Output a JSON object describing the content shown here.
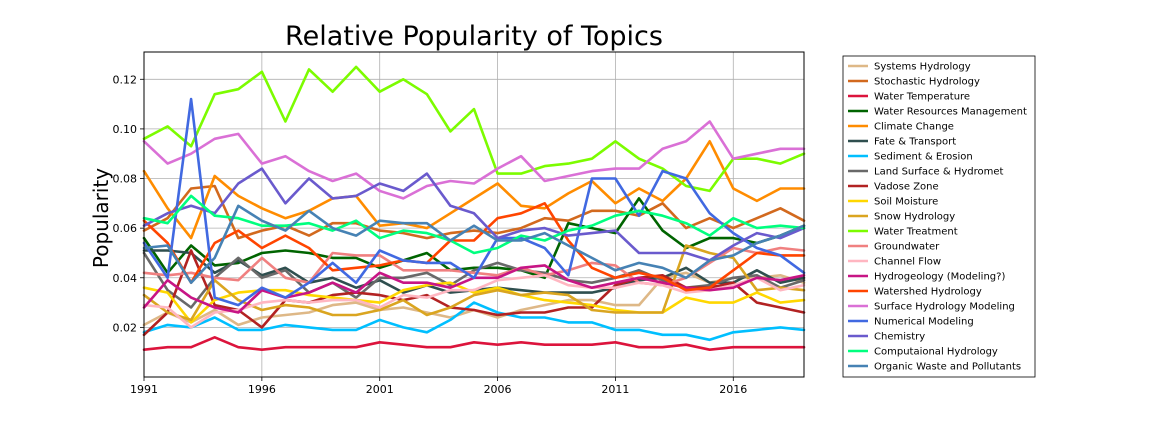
{
  "chart_data": {
    "type": "line",
    "title": "Relative Popularity of Topics",
    "xlabel": "",
    "ylabel": "Popularity",
    "xlim": [
      1991,
      2019
    ],
    "ylim": [
      0,
      0.131
    ],
    "grid": true,
    "legend_placement": "outside-right",
    "x": [
      1991,
      1992,
      1993,
      1994,
      1995,
      1996,
      1997,
      1998,
      1999,
      2000,
      2001,
      2002,
      2003,
      2004,
      2005,
      2006,
      2007,
      2008,
      2009,
      2010,
      2011,
      2012,
      2013,
      2014,
      2015,
      2016,
      2017,
      2018,
      2019
    ],
    "x_ticks": [
      1991,
      1996,
      2001,
      2006,
      2011,
      2016
    ],
    "y_ticks": [
      0.02,
      0.04,
      0.06,
      0.08,
      0.1,
      0.12
    ],
    "y_tick_labels": [
      "0.02",
      "0.04",
      "0.06",
      "0.08",
      "0.10",
      "0.12"
    ],
    "series": [
      {
        "name": "Systems Hydrology",
        "color": "#deb887",
        "values": [
          0.021,
          0.026,
          0.022,
          0.027,
          0.021,
          0.024,
          0.025,
          0.026,
          0.029,
          0.03,
          0.027,
          0.028,
          0.026,
          0.024,
          0.027,
          0.024,
          0.027,
          0.029,
          0.031,
          0.031,
          0.029,
          0.029,
          0.04,
          0.042,
          0.038,
          0.04,
          0.04,
          0.041,
          0.038
        ]
      },
      {
        "name": "Stochastic Hydrology",
        "color": "#d2691e",
        "values": [
          0.059,
          0.064,
          0.076,
          0.077,
          0.056,
          0.059,
          0.061,
          0.057,
          0.062,
          0.062,
          0.059,
          0.058,
          0.056,
          0.058,
          0.059,
          0.058,
          0.06,
          0.064,
          0.063,
          0.067,
          0.067,
          0.065,
          0.07,
          0.06,
          0.064,
          0.06,
          0.064,
          0.068,
          0.063
        ]
      },
      {
        "name": "Water Temperature",
        "color": "#dc143c",
        "values": [
          0.011,
          0.012,
          0.012,
          0.016,
          0.012,
          0.011,
          0.012,
          0.012,
          0.012,
          0.012,
          0.014,
          0.013,
          0.012,
          0.012,
          0.014,
          0.013,
          0.014,
          0.013,
          0.013,
          0.013,
          0.014,
          0.012,
          0.012,
          0.013,
          0.011,
          0.012,
          0.012,
          0.012,
          0.012
        ]
      },
      {
        "name": "Water Resources Management",
        "color": "#006400",
        "values": [
          0.056,
          0.042,
          0.053,
          0.045,
          0.046,
          0.05,
          0.051,
          0.05,
          0.048,
          0.048,
          0.044,
          0.047,
          0.05,
          0.043,
          0.044,
          0.044,
          0.043,
          0.04,
          0.062,
          0.06,
          0.058,
          0.072,
          0.059,
          0.052,
          0.056,
          0.056,
          0.054,
          0.057,
          0.061
        ]
      },
      {
        "name": "Climate Change",
        "color": "#ff8c00",
        "values": [
          0.083,
          0.068,
          0.056,
          0.081,
          0.073,
          0.068,
          0.064,
          0.067,
          0.072,
          0.073,
          0.061,
          0.062,
          0.06,
          0.066,
          0.072,
          0.078,
          0.069,
          0.068,
          0.074,
          0.079,
          0.07,
          0.076,
          0.071,
          0.08,
          0.095,
          0.076,
          0.071,
          0.076,
          0.076
        ]
      },
      {
        "name": "Fate & Transport",
        "color": "#2f4f4f",
        "values": [
          0.051,
          0.051,
          0.05,
          0.042,
          0.047,
          0.041,
          0.044,
          0.038,
          0.04,
          0.036,
          0.039,
          0.034,
          0.037,
          0.034,
          0.035,
          0.036,
          0.035,
          0.034,
          0.034,
          0.034,
          0.036,
          0.039,
          0.04,
          0.044,
          0.038,
          0.038,
          0.043,
          0.038,
          0.04
        ]
      },
      {
        "name": "Sediment & Erosion",
        "color": "#00bfff",
        "values": [
          0.018,
          0.021,
          0.02,
          0.024,
          0.019,
          0.019,
          0.021,
          0.02,
          0.019,
          0.019,
          0.023,
          0.02,
          0.018,
          0.023,
          0.03,
          0.026,
          0.024,
          0.024,
          0.022,
          0.022,
          0.019,
          0.019,
          0.017,
          0.017,
          0.015,
          0.018,
          0.019,
          0.02,
          0.019
        ]
      },
      {
        "name": "Land Surface & Hydromet",
        "color": "#696969",
        "values": [
          0.05,
          0.035,
          0.028,
          0.04,
          0.048,
          0.04,
          0.043,
          0.034,
          0.038,
          0.032,
          0.04,
          0.04,
          0.042,
          0.037,
          0.043,
          0.046,
          0.043,
          0.042,
          0.039,
          0.038,
          0.04,
          0.043,
          0.039,
          0.036,
          0.037,
          0.04,
          0.041,
          0.036,
          0.039
        ]
      },
      {
        "name": "Vadose Zone",
        "color": "#b22222",
        "values": [
          0.017,
          0.026,
          0.051,
          0.029,
          0.027,
          0.02,
          0.031,
          0.03,
          0.033,
          0.034,
          0.033,
          0.031,
          0.033,
          0.028,
          0.027,
          0.025,
          0.026,
          0.026,
          0.028,
          0.028,
          0.037,
          0.04,
          0.041,
          0.036,
          0.036,
          0.038,
          0.03,
          0.028,
          0.026
        ]
      },
      {
        "name": "Soil Moisture",
        "color": "#ffd700",
        "values": [
          0.036,
          0.034,
          0.022,
          0.031,
          0.034,
          0.035,
          0.035,
          0.033,
          0.032,
          0.031,
          0.03,
          0.035,
          0.037,
          0.038,
          0.034,
          0.036,
          0.033,
          0.031,
          0.03,
          0.029,
          0.027,
          0.026,
          0.026,
          0.032,
          0.03,
          0.03,
          0.034,
          0.03,
          0.031
        ]
      },
      {
        "name": "Snow Hydrology",
        "color": "#daa520",
        "values": [
          0.033,
          0.026,
          0.023,
          0.039,
          0.031,
          0.027,
          0.029,
          0.028,
          0.025,
          0.025,
          0.027,
          0.031,
          0.025,
          0.028,
          0.033,
          0.035,
          0.033,
          0.034,
          0.033,
          0.027,
          0.026,
          0.026,
          0.026,
          0.053,
          0.05,
          0.048,
          0.035,
          0.036,
          0.035
        ]
      },
      {
        "name": "Water Treatment",
        "color": "#7cfc00",
        "values": [
          0.096,
          0.101,
          0.093,
          0.114,
          0.116,
          0.123,
          0.103,
          0.124,
          0.115,
          0.125,
          0.115,
          0.12,
          0.114,
          0.099,
          0.108,
          0.082,
          0.082,
          0.085,
          0.086,
          0.088,
          0.095,
          0.088,
          0.084,
          0.077,
          0.075,
          0.088,
          0.088,
          0.086,
          0.09
        ]
      },
      {
        "name": "Groundwater",
        "color": "#f08080",
        "values": [
          0.042,
          0.041,
          0.042,
          0.04,
          0.039,
          0.048,
          0.04,
          0.038,
          0.05,
          0.049,
          0.049,
          0.043,
          0.043,
          0.043,
          0.042,
          0.041,
          0.044,
          0.041,
          0.043,
          0.046,
          0.045,
          0.038,
          0.037,
          0.04,
          0.046,
          0.052,
          0.05,
          0.052,
          0.051
        ]
      },
      {
        "name": "Channel Flow",
        "color": "#ffb6c1",
        "values": [
          0.029,
          0.028,
          0.02,
          0.026,
          0.027,
          0.03,
          0.031,
          0.03,
          0.031,
          0.031,
          0.028,
          0.033,
          0.032,
          0.035,
          0.035,
          0.039,
          0.04,
          0.041,
          0.037,
          0.036,
          0.036,
          0.038,
          0.037,
          0.034,
          0.035,
          0.037,
          0.04,
          0.035,
          0.037
        ]
      },
      {
        "name": "Hydrogeology (Modeling?)",
        "color": "#c71585",
        "values": [
          0.028,
          0.039,
          0.032,
          0.028,
          0.026,
          0.035,
          0.032,
          0.034,
          0.038,
          0.034,
          0.042,
          0.038,
          0.038,
          0.036,
          0.04,
          0.04,
          0.044,
          0.045,
          0.039,
          0.036,
          0.038,
          0.04,
          0.038,
          0.036,
          0.035,
          0.036,
          0.04,
          0.039,
          0.041
        ]
      },
      {
        "name": "Watershed Hydrology",
        "color": "#ff4500",
        "values": [
          0.063,
          0.054,
          0.038,
          0.054,
          0.059,
          0.052,
          0.057,
          0.052,
          0.043,
          0.044,
          0.045,
          0.047,
          0.046,
          0.055,
          0.055,
          0.064,
          0.066,
          0.07,
          0.055,
          0.044,
          0.04,
          0.042,
          0.04,
          0.035,
          0.036,
          0.043,
          0.05,
          0.049,
          0.049
        ]
      },
      {
        "name": "Surface Hydrology Modeling",
        "color": "#da70d6",
        "values": [
          0.095,
          0.086,
          0.09,
          0.096,
          0.098,
          0.086,
          0.089,
          0.083,
          0.079,
          0.082,
          0.075,
          0.072,
          0.077,
          0.079,
          0.078,
          0.084,
          0.089,
          0.079,
          0.081,
          0.083,
          0.084,
          0.084,
          0.092,
          0.095,
          0.103,
          0.088,
          0.09,
          0.092,
          0.092
        ]
      },
      {
        "name": "Numerical Modeling",
        "color": "#4169e1",
        "values": [
          0.054,
          0.04,
          0.112,
          0.032,
          0.029,
          0.036,
          0.032,
          0.038,
          0.046,
          0.038,
          0.051,
          0.047,
          0.046,
          0.046,
          0.04,
          0.056,
          0.056,
          0.052,
          0.041,
          0.08,
          0.08,
          0.065,
          0.083,
          0.08,
          0.066,
          0.058,
          0.052,
          0.049,
          0.042
        ]
      },
      {
        "name": "Chemistry",
        "color": "#6a5acd",
        "values": [
          0.061,
          0.066,
          0.069,
          0.066,
          0.078,
          0.084,
          0.07,
          0.08,
          0.072,
          0.073,
          0.078,
          0.075,
          0.082,
          0.069,
          0.066,
          0.056,
          0.059,
          0.06,
          0.057,
          0.058,
          0.059,
          0.05,
          0.05,
          0.05,
          0.047,
          0.053,
          0.058,
          0.056,
          0.06
        ]
      },
      {
        "name": "Computaional Hydrology",
        "color": "#00ff7f",
        "values": [
          0.064,
          0.062,
          0.073,
          0.065,
          0.064,
          0.061,
          0.061,
          0.062,
          0.059,
          0.063,
          0.056,
          0.059,
          0.058,
          0.055,
          0.05,
          0.052,
          0.057,
          0.055,
          0.059,
          0.061,
          0.065,
          0.067,
          0.065,
          0.062,
          0.057,
          0.064,
          0.06,
          0.061,
          0.06
        ]
      },
      {
        "name": "Organic Waste and Pollutants",
        "color": "#4682b4",
        "values": [
          0.052,
          0.053,
          0.038,
          0.048,
          0.069,
          0.063,
          0.059,
          0.067,
          0.06,
          0.057,
          0.063,
          0.062,
          0.062,
          0.055,
          0.061,
          0.055,
          0.055,
          0.058,
          0.053,
          0.048,
          0.043,
          0.046,
          0.044,
          0.04,
          0.047,
          0.049,
          0.054,
          0.057,
          0.061
        ]
      }
    ]
  }
}
